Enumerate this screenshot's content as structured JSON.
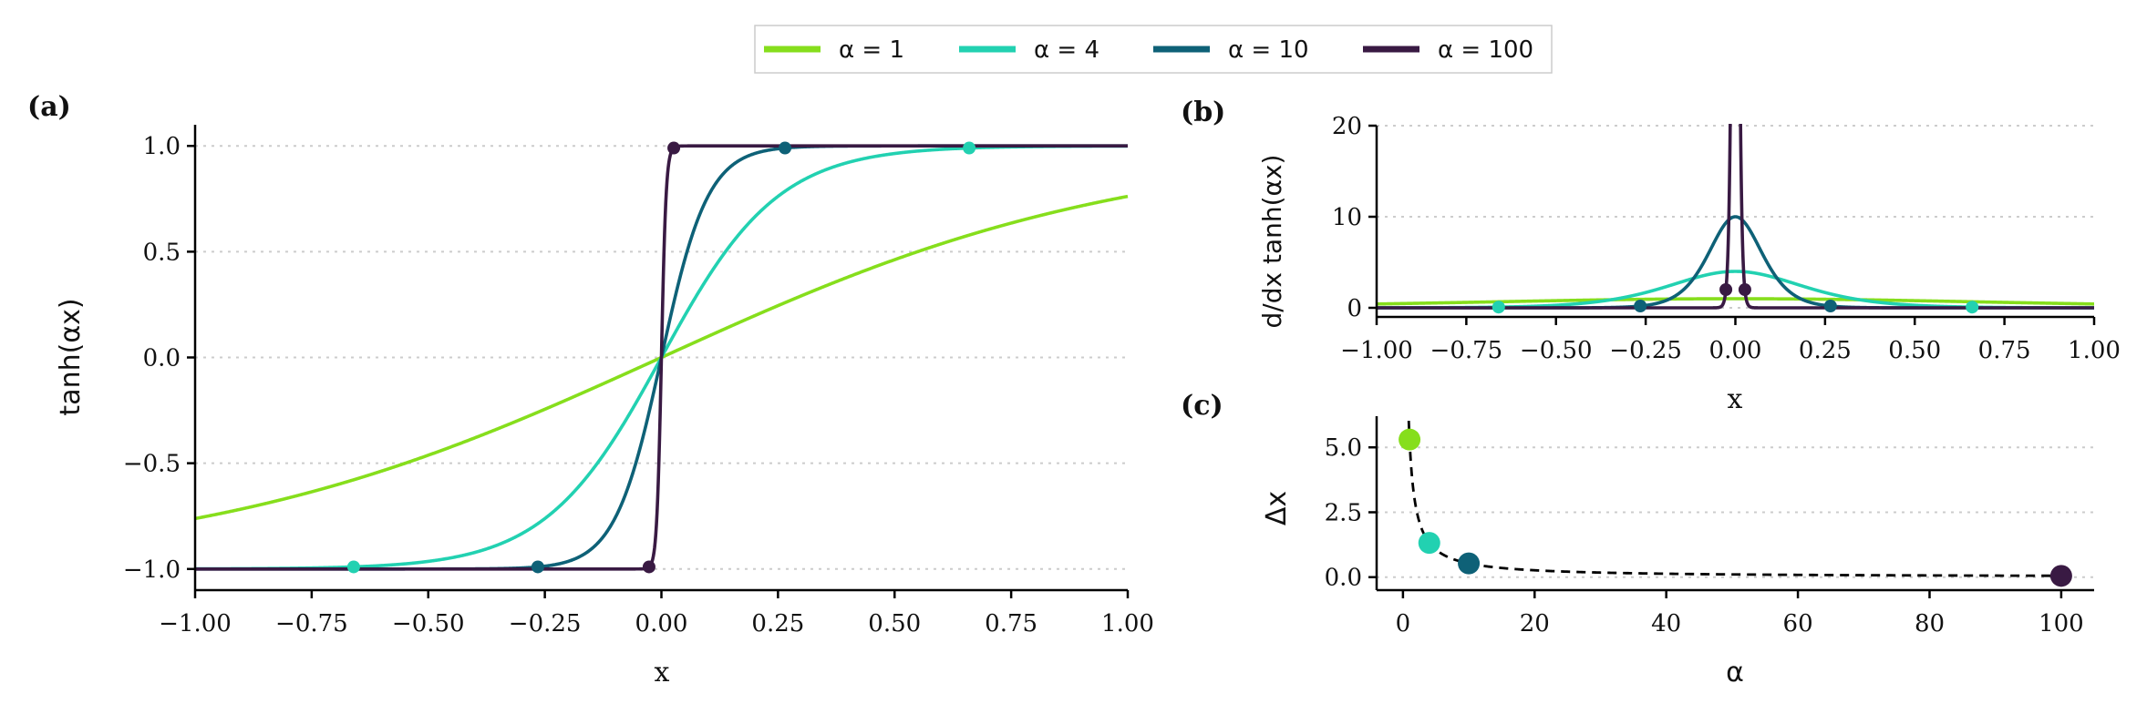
{
  "colors": {
    "a1": "#86de1c",
    "a4": "#22d1b1",
    "a10": "#0e6177",
    "a100": "#391a43"
  },
  "legend": [
    {
      "key": "a1",
      "label": "α = 1"
    },
    {
      "key": "a4",
      "label": "α = 4"
    },
    {
      "key": "a10",
      "label": "α = 10"
    },
    {
      "key": "a100",
      "label": "α = 100"
    }
  ],
  "chart_data": [
    {
      "id": "a",
      "panel_label": "(a)",
      "type": "line",
      "function": "tanh(alpha*x)",
      "xlabel": "x",
      "ylabel": "tanh(αx)",
      "xlim": [
        -1.0,
        1.0
      ],
      "ylim": [
        -1.1,
        1.1
      ],
      "xticks": [
        -1.0,
        -0.75,
        -0.5,
        -0.25,
        0.0,
        0.25,
        0.5,
        0.75,
        1.0
      ],
      "xtick_labels": [
        "−1.00",
        "−0.75",
        "−0.50",
        "−0.25",
        "0.00",
        "0.25",
        "0.50",
        "0.75",
        "1.00"
      ],
      "yticks": [
        -1.0,
        -0.5,
        0.0,
        0.5,
        1.0
      ],
      "ytick_labels": [
        "−1.0",
        "−0.5",
        "0.0",
        "0.5",
        "1.0"
      ],
      "grid": "horizontal dotted",
      "series": [
        {
          "key": "a1",
          "alpha": 1,
          "markers": []
        },
        {
          "key": "a4",
          "alpha": 4,
          "markers": [
            [
              -0.66,
              -0.99
            ],
            [
              0.66,
              0.99
            ]
          ]
        },
        {
          "key": "a10",
          "alpha": 10,
          "markers": [
            [
              -0.265,
              -0.99
            ],
            [
              0.265,
              0.99
            ]
          ]
        },
        {
          "key": "a100",
          "alpha": 100,
          "markers": [
            [
              -0.0265,
              -0.99
            ],
            [
              0.0265,
              0.99
            ]
          ]
        }
      ]
    },
    {
      "id": "b",
      "panel_label": "(b)",
      "type": "line",
      "function": "alpha*(1 - tanh(alpha*x)^2)",
      "xlabel": "x",
      "ylabel": "d/dx tanh(αx)",
      "xlim": [
        -1.0,
        1.0
      ],
      "ylim": [
        -1.0,
        20.0
      ],
      "xticks": [
        -1.0,
        -0.75,
        -0.5,
        -0.25,
        0.0,
        0.25,
        0.5,
        0.75,
        1.0
      ],
      "xtick_labels": [
        "−1.00",
        "−0.75",
        "−0.50",
        "−0.25",
        "0.00",
        "0.25",
        "0.50",
        "0.75",
        "1.00"
      ],
      "yticks": [
        0,
        10,
        20
      ],
      "ytick_labels": [
        "0",
        "10",
        "20"
      ],
      "grid": "horizontal dotted",
      "series": [
        {
          "key": "a1",
          "alpha": 1,
          "markers": []
        },
        {
          "key": "a4",
          "alpha": 4,
          "markers": [
            [
              -0.66,
              0.08
            ],
            [
              0.66,
              0.08
            ]
          ]
        },
        {
          "key": "a10",
          "alpha": 10,
          "markers": [
            [
              -0.265,
              0.2
            ],
            [
              0.265,
              0.2
            ]
          ]
        },
        {
          "key": "a100",
          "alpha": 100,
          "markers": [
            [
              -0.0265,
              2.0
            ],
            [
              0.0265,
              2.0
            ]
          ]
        }
      ]
    },
    {
      "id": "c",
      "panel_label": "(c)",
      "type": "scatter",
      "xlabel": "α",
      "ylabel": "Δx",
      "xlim": [
        -4.0,
        105.0
      ],
      "ylim": [
        -0.5,
        6.2
      ],
      "xticks": [
        0,
        20,
        40,
        60,
        80,
        100
      ],
      "xtick_labels": [
        "0",
        "20",
        "40",
        "60",
        "80",
        "100"
      ],
      "yticks": [
        0.0,
        2.5,
        5.0
      ],
      "ytick_labels": [
        "0.0",
        "2.5",
        "5.0"
      ],
      "grid": "horizontal dotted",
      "curve": {
        "formula": "5.3/alpha",
        "alpha_range": [
          0.88,
          100
        ],
        "style": "dashed",
        "color": "#000000"
      },
      "points": [
        {
          "key": "a1",
          "x": 1,
          "y": 5.3
        },
        {
          "key": "a4",
          "x": 4,
          "y": 1.32
        },
        {
          "key": "a10",
          "x": 10,
          "y": 0.53
        },
        {
          "key": "a100",
          "x": 100,
          "y": 0.05
        }
      ]
    }
  ]
}
